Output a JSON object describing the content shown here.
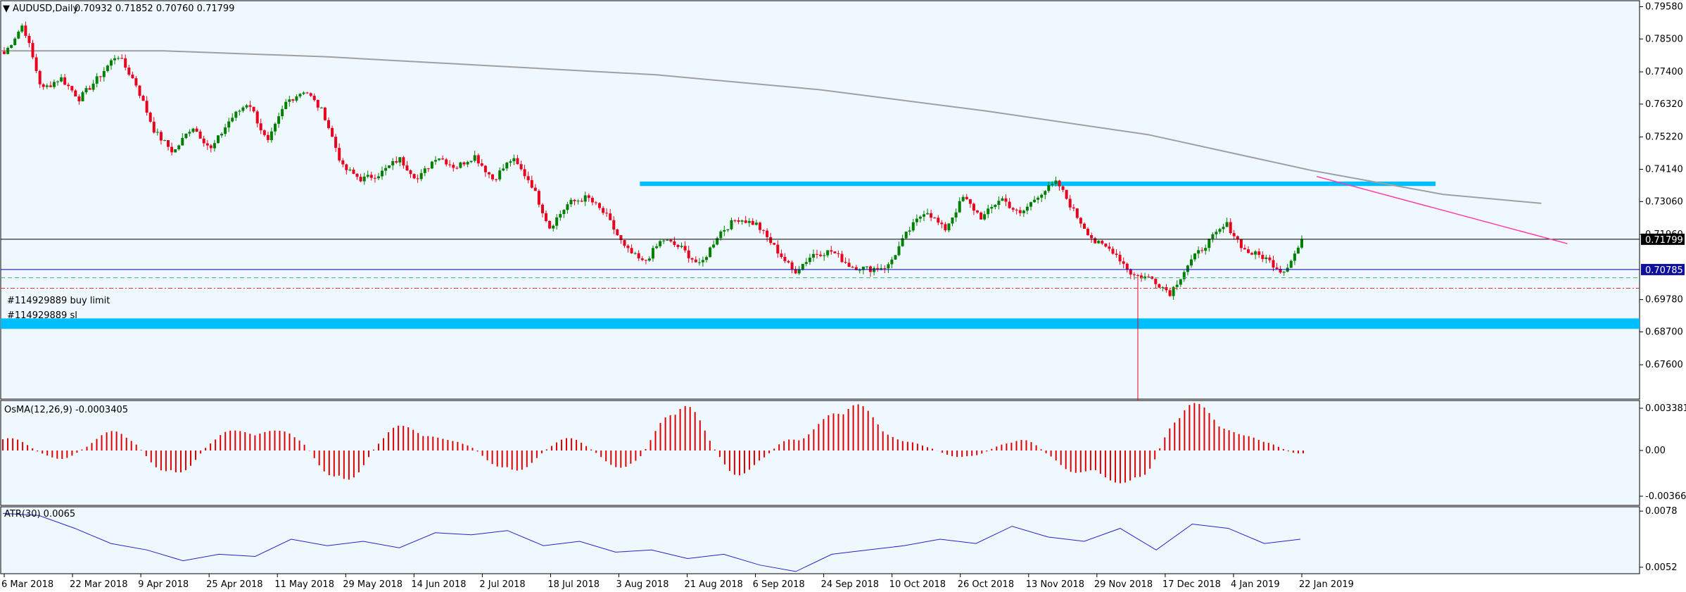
{
  "header": {
    "symbol": "AUDUSD,Daily",
    "ohlc": "0.70932 0.71852 0.70760 0.71799"
  },
  "chart_data": {
    "type": "candlestick",
    "symbol": "AUDUSD",
    "timeframe": "Daily",
    "last_price": 0.71799,
    "current_bid_line": "0.71799",
    "order_line": "0.70785",
    "main_axis": {
      "ylim": [
        0.6645,
        0.7978
      ],
      "tick_labels": [
        "0.79580",
        "0.78500",
        "0.77400",
        "0.76320",
        "0.75220",
        "0.74140",
        "0.73060",
        "0.71960",
        "0.69780",
        "0.68700",
        "0.67600"
      ]
    },
    "x_tick_labels": [
      "6 Mar 2018",
      "22 Mar 2018",
      "9 Apr 2018",
      "25 Apr 2018",
      "11 May 2018",
      "29 May 2018",
      "14 Jun 2018",
      "2 Jul 2018",
      "18 Jul 2018",
      "3 Aug 2018",
      "21 Aug 2018",
      "6 Sep 2018",
      "24 Sep 2018",
      "10 Oct 2018",
      "26 Oct 2018",
      "13 Nov 2018",
      "29 Nov 2018",
      "17 Dec 2018",
      "4 Jan 2019",
      "22 Jan 2019"
    ],
    "order_annotations": {
      "buy_limit": "#114929889 buy limit",
      "sl": "#114929889 sl"
    },
    "zones": [
      {
        "from": 0.7358,
        "to": 0.7373
      },
      {
        "from": 0.688,
        "to": 0.6915
      }
    ],
    "levels": {
      "buy_limit": 0.7051,
      "sl": 0.7016
    },
    "close_path": [
      0.78,
      0.79,
      0.768,
      0.772,
      0.765,
      0.772,
      0.78,
      0.77,
      0.754,
      0.747,
      0.756,
      0.748,
      0.758,
      0.764,
      0.75,
      0.764,
      0.768,
      0.76,
      0.742,
      0.738,
      0.74,
      0.745,
      0.738,
      0.746,
      0.742,
      0.746,
      0.738,
      0.745,
      0.737,
      0.722,
      0.73,
      0.732,
      0.726,
      0.715,
      0.71,
      0.718,
      0.715,
      0.709,
      0.72,
      0.725,
      0.723,
      0.715,
      0.707,
      0.713,
      0.714,
      0.709,
      0.708,
      0.709,
      0.72,
      0.728,
      0.721,
      0.732,
      0.725,
      0.732,
      0.726,
      0.733,
      0.737,
      0.726,
      0.717,
      0.714,
      0.706,
      0.705,
      0.7,
      0.71,
      0.717,
      0.723,
      0.714,
      0.712,
      0.707,
      0.717
    ],
    "ma": [
      [
        0,
        0.781
      ],
      [
        0.1,
        0.781
      ],
      [
        0.2,
        0.779
      ],
      [
        0.3,
        0.776
      ],
      [
        0.4,
        0.773
      ],
      [
        0.5,
        0.768
      ],
      [
        0.6,
        0.761
      ],
      [
        0.7,
        0.753
      ],
      [
        0.8,
        0.741
      ],
      [
        0.88,
        0.733
      ],
      [
        0.94,
        0.73
      ]
    ],
    "trendline": {
      "from": [
        0.803,
        0.739
      ],
      "to": [
        0.956,
        0.7165
      ]
    },
    "osma": {
      "label": "OsMA(12,26,9) -0.0003405",
      "ylim": [
        -0.0044,
        0.004
      ],
      "tick_labels": [
        "0.0033816",
        "0.00",
        "-0.0036637"
      ],
      "waves": [
        0.0012,
        -0.0007,
        0.0016,
        -0.0021,
        0.0016,
        0.0016,
        -0.0027,
        0.002,
        0.0008,
        -0.0018,
        0.001,
        -0.0015,
        0.0039,
        -0.002,
        0.001,
        0.0039,
        0.0007,
        -0.0006,
        0.0009,
        -0.0018,
        -0.0028,
        0.0039,
        0.0012,
        -0.0003
      ]
    },
    "atr": {
      "label": "ATR(30) 0.0065",
      "ylim": [
        0.0049,
        0.008
      ],
      "tick_labels": [
        "0.0078",
        "0.0052"
      ],
      "path": [
        0.0077,
        0.0076,
        0.007,
        0.0063,
        0.006,
        0.0055,
        0.0058,
        0.0057,
        0.0065,
        0.0062,
        0.0064,
        0.0061,
        0.0068,
        0.0067,
        0.0069,
        0.0062,
        0.0064,
        0.0059,
        0.006,
        0.0056,
        0.0058,
        0.0053,
        0.005,
        0.0058,
        0.006,
        0.0062,
        0.0065,
        0.0063,
        0.0071,
        0.0066,
        0.0064,
        0.007,
        0.006,
        0.0072,
        0.007,
        0.0063,
        0.0065
      ]
    }
  },
  "colors": {
    "background": "#f0f8ff",
    "bull": "#008000",
    "bear": "#e8001c",
    "zone": "#00bfff",
    "ma": "#a0a0a0",
    "trendline": "#ff3ea5",
    "bid_line": "#000000",
    "order_line": "#0000aa",
    "order_dash": "#3cb371",
    "sl_dash": "#e03030",
    "atr": "#2222cc",
    "osma": "#e00000"
  }
}
